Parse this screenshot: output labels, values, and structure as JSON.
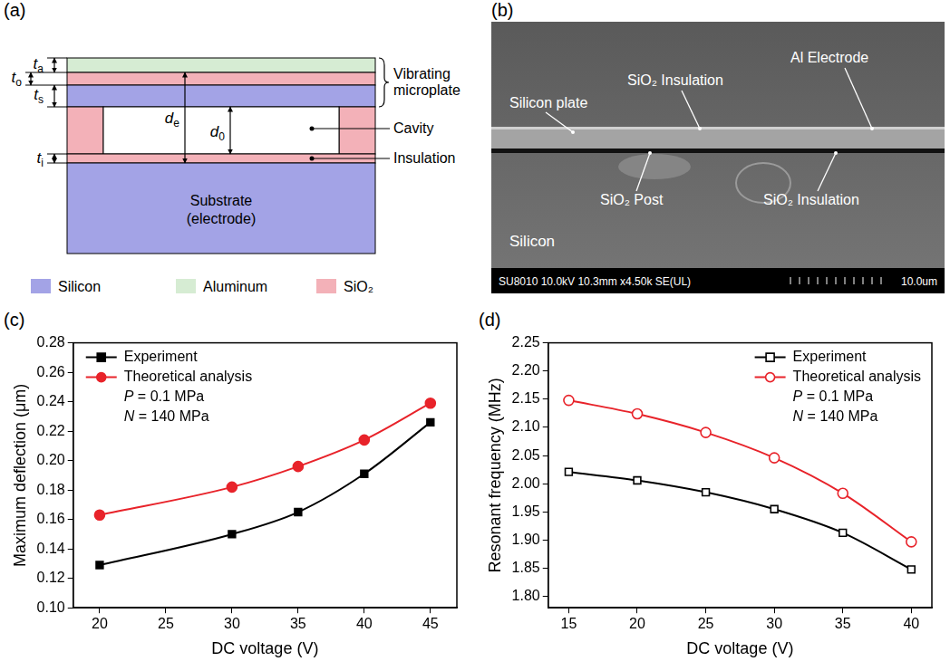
{
  "diagram": {
    "panel": "(a)",
    "dimensions": {
      "t_a": {
        "base": "t",
        "sub": "a"
      },
      "t_o": {
        "base": "t",
        "sub": "o"
      },
      "t_s": {
        "base": "t",
        "sub": "s"
      },
      "t_i": {
        "base": "t",
        "sub": "i"
      },
      "d_e": {
        "base": "d",
        "sub": "e"
      },
      "d_0": {
        "base": "d",
        "sub": "0"
      }
    },
    "labels": {
      "microplate": "Vibrating microplate",
      "cavity": "Cavity",
      "insulation": "Insulation",
      "substrate": "Substrate (electrode)"
    },
    "legend": [
      {
        "name": "Silicon",
        "color": "#a3a3e6"
      },
      {
        "name": "Aluminum",
        "color": "#d6ecd3"
      },
      {
        "name": "SiO₂",
        "color": "#f3b1b8"
      }
    ]
  },
  "micrograph": {
    "panel": "(b)",
    "labels": {
      "silicon_plate": "Silicon plate",
      "top_insulation": "SiO₂ Insulation",
      "electrode": "Al Electrode",
      "post": "SiO₂ Post",
      "bottom_insulation": "SiO₂ Insulation",
      "substrate": "Silicon"
    },
    "info": "SU8010 10.0kV 10.3mm x4.50k SE(UL)",
    "scale_bar": "10.0um"
  },
  "chart_data": [
    {
      "panel": "(c)",
      "type": "line",
      "x_label": "DC voltage (V)",
      "y_label": "Maximum deflection (μm)",
      "x": [
        20,
        30,
        35,
        40,
        45
      ],
      "xlim": [
        18,
        47
      ],
      "xticks": [
        20,
        25,
        30,
        35,
        40,
        45
      ],
      "ylim": [
        0.1,
        0.28
      ],
      "yticks": [
        {
          "value": 0.1,
          "label": "0.10"
        },
        0.12,
        0.14,
        0.16,
        0.18,
        {
          "value": 0.2,
          "label": "0.20"
        },
        0.22,
        0.24,
        0.26,
        0.28
      ],
      "grid": false,
      "legend": "upper left",
      "annotations": [
        "P = 0.1 MPa",
        "N = 140 MPa"
      ],
      "series": [
        {
          "name": "Experiment",
          "color": "#000000",
          "marker": "square",
          "values": [
            0.129,
            0.15,
            0.165,
            0.191,
            0.226
          ]
        },
        {
          "name": "Theoretical analysis",
          "color": "#e8232a",
          "marker": "circle",
          "values": [
            0.163,
            0.182,
            0.196,
            0.214,
            0.239
          ]
        }
      ]
    },
    {
      "panel": "(d)",
      "type": "line",
      "x_label": "DC voltage (V)",
      "y_label": "Resonant frequency (MHz)",
      "x": [
        15,
        20,
        25,
        30,
        35,
        40
      ],
      "xlim": [
        13.5,
        41.5
      ],
      "xticks": [
        15,
        20,
        25,
        30,
        35,
        40
      ],
      "ylim": [
        1.78,
        2.25
      ],
      "yticks": [
        {
          "value": 1.8,
          "label": "1.80"
        },
        1.85,
        {
          "value": 1.9,
          "label": "1.90"
        },
        1.95,
        {
          "value": 2,
          "label": "2.00"
        },
        2.05,
        {
          "value": 2.1,
          "label": "2.10"
        },
        2.15,
        {
          "value": 2.2,
          "label": "2.20"
        },
        2.25
      ],
      "grid": false,
      "legend": "upper right",
      "annotations": [
        "P = 0.1 MPa",
        "N = 140 MPa"
      ],
      "series": [
        {
          "name": "Experiment",
          "color": "#000000",
          "marker": "open square",
          "values": [
            2.021,
            2.006,
            1.985,
            1.955,
            1.913,
            1.848
          ]
        },
        {
          "name": "Theoretical analysis",
          "color": "#e8232a",
          "marker": "open circle",
          "values": [
            2.148,
            2.124,
            2.091,
            2.046,
            1.983,
            1.897
          ]
        }
      ]
    }
  ]
}
